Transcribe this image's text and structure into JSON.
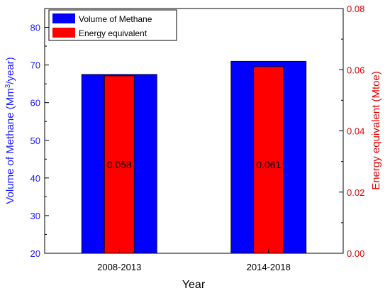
{
  "chart_data": {
    "type": "bar",
    "categories": [
      "2008-2013",
      "2014-2018"
    ],
    "xlabel": "Year",
    "grid": false,
    "legend_position": "top-left",
    "series": [
      {
        "name": "Volume of Methane",
        "axis": "left",
        "values": [
          67.5,
          71.0
        ],
        "color": "#0000ff"
      },
      {
        "name": "Energy equivalent",
        "axis": "right",
        "values": [
          0.058,
          0.061
        ],
        "data_labels": [
          "0.058",
          "0.061"
        ],
        "color": "#ff0000"
      }
    ],
    "y_left": {
      "label_prefix": "Volume of Methane (Mm",
      "label_sup": "3",
      "label_suffix": "/year)",
      "lim": [
        20,
        85
      ],
      "ticks": [
        20,
        30,
        40,
        50,
        60,
        70,
        80
      ],
      "tick_labels": [
        "20",
        "30",
        "40",
        "50",
        "60",
        "70",
        "80"
      ],
      "color": "#1a1aff"
    },
    "y_right": {
      "label": "Energy equivalent (Mtoe)",
      "lim": [
        0,
        0.08
      ],
      "ticks": [
        0,
        0.02,
        0.04,
        0.06,
        0.08
      ],
      "tick_labels": [
        "0.00",
        "0.02",
        "0.04",
        "0.06",
        "0.08"
      ],
      "color": "#e00000"
    }
  }
}
